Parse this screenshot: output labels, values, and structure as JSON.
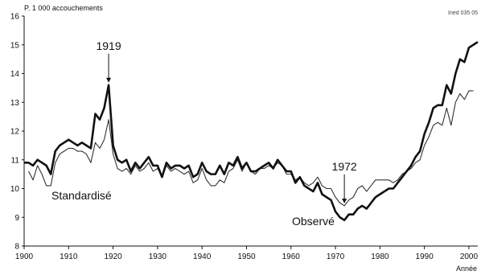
{
  "chart_data": {
    "type": "line",
    "ylabel": "P. 1 000 accouchements",
    "xlabel": "Année",
    "reference": "Ined 035 05",
    "xlim": [
      1900,
      2002
    ],
    "ylim": [
      8,
      16
    ],
    "grid": false,
    "x_ticks": [
      1900,
      1910,
      1920,
      1930,
      1940,
      1950,
      1960,
      1970,
      1980,
      1990,
      2000
    ],
    "y_ticks": [
      8,
      9,
      10,
      11,
      12,
      13,
      14,
      15,
      16
    ],
    "series": [
      {
        "name": "Observé",
        "style": "bold",
        "color": "#111111",
        "points": [
          [
            1900,
            10.9
          ],
          [
            1901,
            10.9
          ],
          [
            1902,
            10.8
          ],
          [
            1903,
            11.0
          ],
          [
            1904,
            10.9
          ],
          [
            1905,
            10.8
          ],
          [
            1906,
            10.5
          ],
          [
            1907,
            11.3
          ],
          [
            1908,
            11.5
          ],
          [
            1909,
            11.6
          ],
          [
            1910,
            11.7
          ],
          [
            1911,
            11.6
          ],
          [
            1912,
            11.5
          ],
          [
            1913,
            11.6
          ],
          [
            1914,
            11.5
          ],
          [
            1915,
            11.4
          ],
          [
            1916,
            12.6
          ],
          [
            1917,
            12.4
          ],
          [
            1918,
            12.8
          ],
          [
            1919,
            13.6
          ],
          [
            1920,
            11.5
          ],
          [
            1921,
            11.0
          ],
          [
            1922,
            10.9
          ],
          [
            1923,
            11.0
          ],
          [
            1924,
            10.6
          ],
          [
            1925,
            10.9
          ],
          [
            1926,
            10.7
          ],
          [
            1927,
            10.9
          ],
          [
            1928,
            11.1
          ],
          [
            1929,
            10.8
          ],
          [
            1930,
            10.8
          ],
          [
            1931,
            10.4
          ],
          [
            1932,
            10.9
          ],
          [
            1933,
            10.7
          ],
          [
            1934,
            10.8
          ],
          [
            1935,
            10.8
          ],
          [
            1936,
            10.7
          ],
          [
            1937,
            10.8
          ],
          [
            1938,
            10.4
          ],
          [
            1939,
            10.5
          ],
          [
            1940,
            10.9
          ],
          [
            1941,
            10.6
          ],
          [
            1942,
            10.5
          ],
          [
            1943,
            10.5
          ],
          [
            1944,
            10.8
          ],
          [
            1945,
            10.5
          ],
          [
            1946,
            10.9
          ],
          [
            1947,
            10.8
          ],
          [
            1948,
            11.1
          ],
          [
            1949,
            10.7
          ],
          [
            1950,
            10.9
          ],
          [
            1951,
            10.6
          ],
          [
            1952,
            10.6
          ],
          [
            1953,
            10.7
          ],
          [
            1954,
            10.8
          ],
          [
            1955,
            10.9
          ],
          [
            1956,
            10.7
          ],
          [
            1957,
            11.0
          ],
          [
            1958,
            10.8
          ],
          [
            1959,
            10.6
          ],
          [
            1960,
            10.6
          ],
          [
            1961,
            10.2
          ],
          [
            1962,
            10.4
          ],
          [
            1963,
            10.1
          ],
          [
            1964,
            10.0
          ],
          [
            1965,
            9.9
          ],
          [
            1966,
            10.2
          ],
          [
            1967,
            9.8
          ],
          [
            1968,
            9.7
          ],
          [
            1969,
            9.6
          ],
          [
            1970,
            9.2
          ],
          [
            1971,
            9.0
          ],
          [
            1972,
            8.9
          ],
          [
            1973,
            9.1
          ],
          [
            1974,
            9.1
          ],
          [
            1975,
            9.3
          ],
          [
            1976,
            9.4
          ],
          [
            1977,
            9.3
          ],
          [
            1978,
            9.5
          ],
          [
            1979,
            9.7
          ],
          [
            1980,
            9.8
          ],
          [
            1981,
            9.9
          ],
          [
            1982,
            10.0
          ],
          [
            1983,
            10.0
          ],
          [
            1984,
            10.2
          ],
          [
            1985,
            10.4
          ],
          [
            1986,
            10.6
          ],
          [
            1987,
            10.8
          ],
          [
            1988,
            11.1
          ],
          [
            1989,
            11.3
          ],
          [
            1990,
            11.9
          ],
          [
            1991,
            12.3
          ],
          [
            1992,
            12.8
          ],
          [
            1993,
            12.9
          ],
          [
            1994,
            12.9
          ],
          [
            1995,
            13.6
          ],
          [
            1996,
            13.3
          ],
          [
            1997,
            14.0
          ],
          [
            1998,
            14.5
          ],
          [
            1999,
            14.4
          ],
          [
            2000,
            14.9
          ],
          [
            2001,
            15.0
          ],
          [
            2002,
            15.1
          ]
        ]
      },
      {
        "name": "Standardisé",
        "style": "thin",
        "color": "#333333",
        "points": [
          [
            1901,
            10.6
          ],
          [
            1902,
            10.3
          ],
          [
            1903,
            10.8
          ],
          [
            1904,
            10.5
          ],
          [
            1905,
            10.1
          ],
          [
            1906,
            10.1
          ],
          [
            1907,
            10.9
          ],
          [
            1908,
            11.2
          ],
          [
            1909,
            11.3
          ],
          [
            1910,
            11.4
          ],
          [
            1911,
            11.4
          ],
          [
            1912,
            11.3
          ],
          [
            1913,
            11.3
          ],
          [
            1914,
            11.2
          ],
          [
            1915,
            10.9
          ],
          [
            1916,
            11.6
          ],
          [
            1917,
            11.4
          ],
          [
            1918,
            11.7
          ],
          [
            1919,
            12.4
          ],
          [
            1920,
            11.2
          ],
          [
            1921,
            10.7
          ],
          [
            1922,
            10.6
          ],
          [
            1923,
            10.7
          ],
          [
            1924,
            10.5
          ],
          [
            1925,
            10.8
          ],
          [
            1926,
            10.6
          ],
          [
            1927,
            10.7
          ],
          [
            1928,
            10.9
          ],
          [
            1929,
            10.6
          ],
          [
            1930,
            10.7
          ],
          [
            1931,
            10.4
          ],
          [
            1932,
            10.8
          ],
          [
            1933,
            10.6
          ],
          [
            1934,
            10.7
          ],
          [
            1935,
            10.6
          ],
          [
            1936,
            10.5
          ],
          [
            1937,
            10.6
          ],
          [
            1938,
            10.2
          ],
          [
            1939,
            10.3
          ],
          [
            1940,
            10.7
          ],
          [
            1941,
            10.3
          ],
          [
            1942,
            10.1
          ],
          [
            1943,
            10.1
          ],
          [
            1944,
            10.3
          ],
          [
            1945,
            10.2
          ],
          [
            1946,
            10.6
          ],
          [
            1947,
            10.7
          ],
          [
            1948,
            11.0
          ],
          [
            1949,
            10.6
          ],
          [
            1950,
            10.9
          ],
          [
            1951,
            10.6
          ],
          [
            1952,
            10.5
          ],
          [
            1953,
            10.7
          ],
          [
            1954,
            10.7
          ],
          [
            1955,
            10.8
          ],
          [
            1956,
            10.7
          ],
          [
            1957,
            10.9
          ],
          [
            1958,
            10.8
          ],
          [
            1959,
            10.5
          ],
          [
            1960,
            10.5
          ],
          [
            1961,
            10.3
          ],
          [
            1962,
            10.4
          ],
          [
            1963,
            10.2
          ],
          [
            1964,
            10.1
          ],
          [
            1965,
            10.2
          ],
          [
            1966,
            10.4
          ],
          [
            1967,
            10.1
          ],
          [
            1968,
            10.0
          ],
          [
            1969,
            10.0
          ],
          [
            1970,
            9.7
          ],
          [
            1971,
            9.5
          ],
          [
            1972,
            9.4
          ],
          [
            1973,
            9.6
          ],
          [
            1974,
            9.7
          ],
          [
            1975,
            10.0
          ],
          [
            1976,
            10.1
          ],
          [
            1977,
            9.9
          ],
          [
            1978,
            10.1
          ],
          [
            1979,
            10.3
          ],
          [
            1980,
            10.3
          ],
          [
            1981,
            10.3
          ],
          [
            1982,
            10.3
          ],
          [
            1983,
            10.2
          ],
          [
            1984,
            10.3
          ],
          [
            1985,
            10.5
          ],
          [
            1986,
            10.6
          ],
          [
            1987,
            10.7
          ],
          [
            1988,
            10.9
          ],
          [
            1989,
            11.0
          ],
          [
            1990,
            11.5
          ],
          [
            1991,
            11.8
          ],
          [
            1992,
            12.2
          ],
          [
            1993,
            12.3
          ],
          [
            1994,
            12.2
          ],
          [
            1995,
            12.8
          ],
          [
            1996,
            12.2
          ],
          [
            1997,
            13.0
          ],
          [
            1998,
            13.3
          ],
          [
            1999,
            13.1
          ],
          [
            2000,
            13.4
          ],
          [
            2001,
            13.4
          ]
        ]
      }
    ],
    "annotations": [
      {
        "text": "1919",
        "x": 1919,
        "y": 13.6
      },
      {
        "text": "1972",
        "x": 1972,
        "y": 9.4
      }
    ]
  }
}
